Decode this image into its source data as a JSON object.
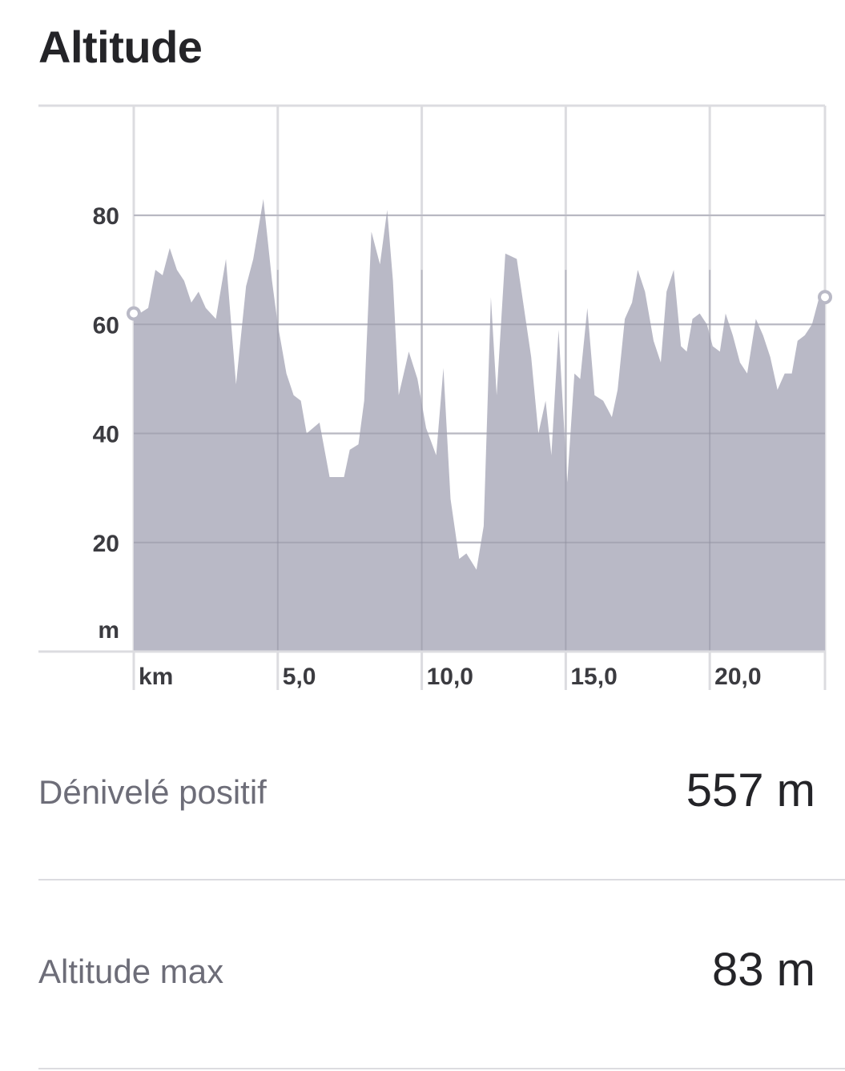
{
  "header": {
    "title": "Altitude"
  },
  "chart_data": {
    "type": "area",
    "xlabel": "km",
    "ylabel": "m",
    "x_ticks": [
      "km",
      "5,0",
      "10,0",
      "15,0",
      "20,0"
    ],
    "y_ticks": [
      "80",
      "60",
      "40",
      "20",
      "m"
    ],
    "xlim": [
      0,
      24
    ],
    "ylim": [
      0,
      100
    ],
    "grid": true,
    "fill_color": "#b9b9c6",
    "grid_color": "#dcdce0",
    "x": [
      0.0,
      0.2,
      0.5,
      0.75,
      1.0,
      1.25,
      1.5,
      1.75,
      2.0,
      2.25,
      2.5,
      2.85,
      3.2,
      3.55,
      3.9,
      4.15,
      4.5,
      4.8,
      5.0,
      5.3,
      5.55,
      5.8,
      6.0,
      6.45,
      6.8,
      7.05,
      7.3,
      7.5,
      7.8,
      8.0,
      8.25,
      8.55,
      8.8,
      9.0,
      9.2,
      9.55,
      9.85,
      10.15,
      10.5,
      10.75,
      11.0,
      11.3,
      11.55,
      11.9,
      12.15,
      12.4,
      12.6,
      12.9,
      13.3,
      13.55,
      13.8,
      14.05,
      14.3,
      14.5,
      14.75,
      15.05,
      15.3,
      15.5,
      15.75,
      16.0,
      16.3,
      16.6,
      16.8,
      17.05,
      17.3,
      17.5,
      17.75,
      18.05,
      18.3,
      18.5,
      18.75,
      19.0,
      19.2,
      19.4,
      19.65,
      19.9,
      20.1,
      20.35,
      20.55,
      20.8,
      21.05,
      21.3,
      21.6,
      21.85,
      22.1,
      22.35,
      22.6,
      22.85,
      23.05,
      23.3,
      23.55,
      23.8,
      24.0
    ],
    "values": [
      62,
      62,
      63,
      70,
      69,
      74,
      70,
      68,
      64,
      66,
      63,
      61,
      72,
      49,
      67,
      72,
      83,
      68,
      60,
      51,
      47,
      46,
      40,
      42,
      32,
      32,
      32,
      37,
      38,
      46,
      77,
      71,
      81,
      68,
      47,
      55,
      50,
      41,
      36,
      52,
      28,
      17,
      18,
      15,
      23,
      65,
      47,
      73,
      72,
      63,
      54,
      40,
      46,
      36,
      59,
      31,
      51,
      50,
      63,
      47,
      46,
      43,
      48,
      61,
      64,
      70,
      66,
      57,
      53,
      66,
      70,
      56,
      55,
      61,
      62,
      60,
      56,
      55,
      62,
      58,
      53,
      51,
      61,
      58,
      54,
      48,
      51,
      51,
      57,
      58,
      60,
      65,
      65
    ]
  },
  "stats": [
    {
      "label": "Dénivelé positif",
      "value": "557 m"
    },
    {
      "label": "Altitude max",
      "value": "83 m"
    }
  ]
}
